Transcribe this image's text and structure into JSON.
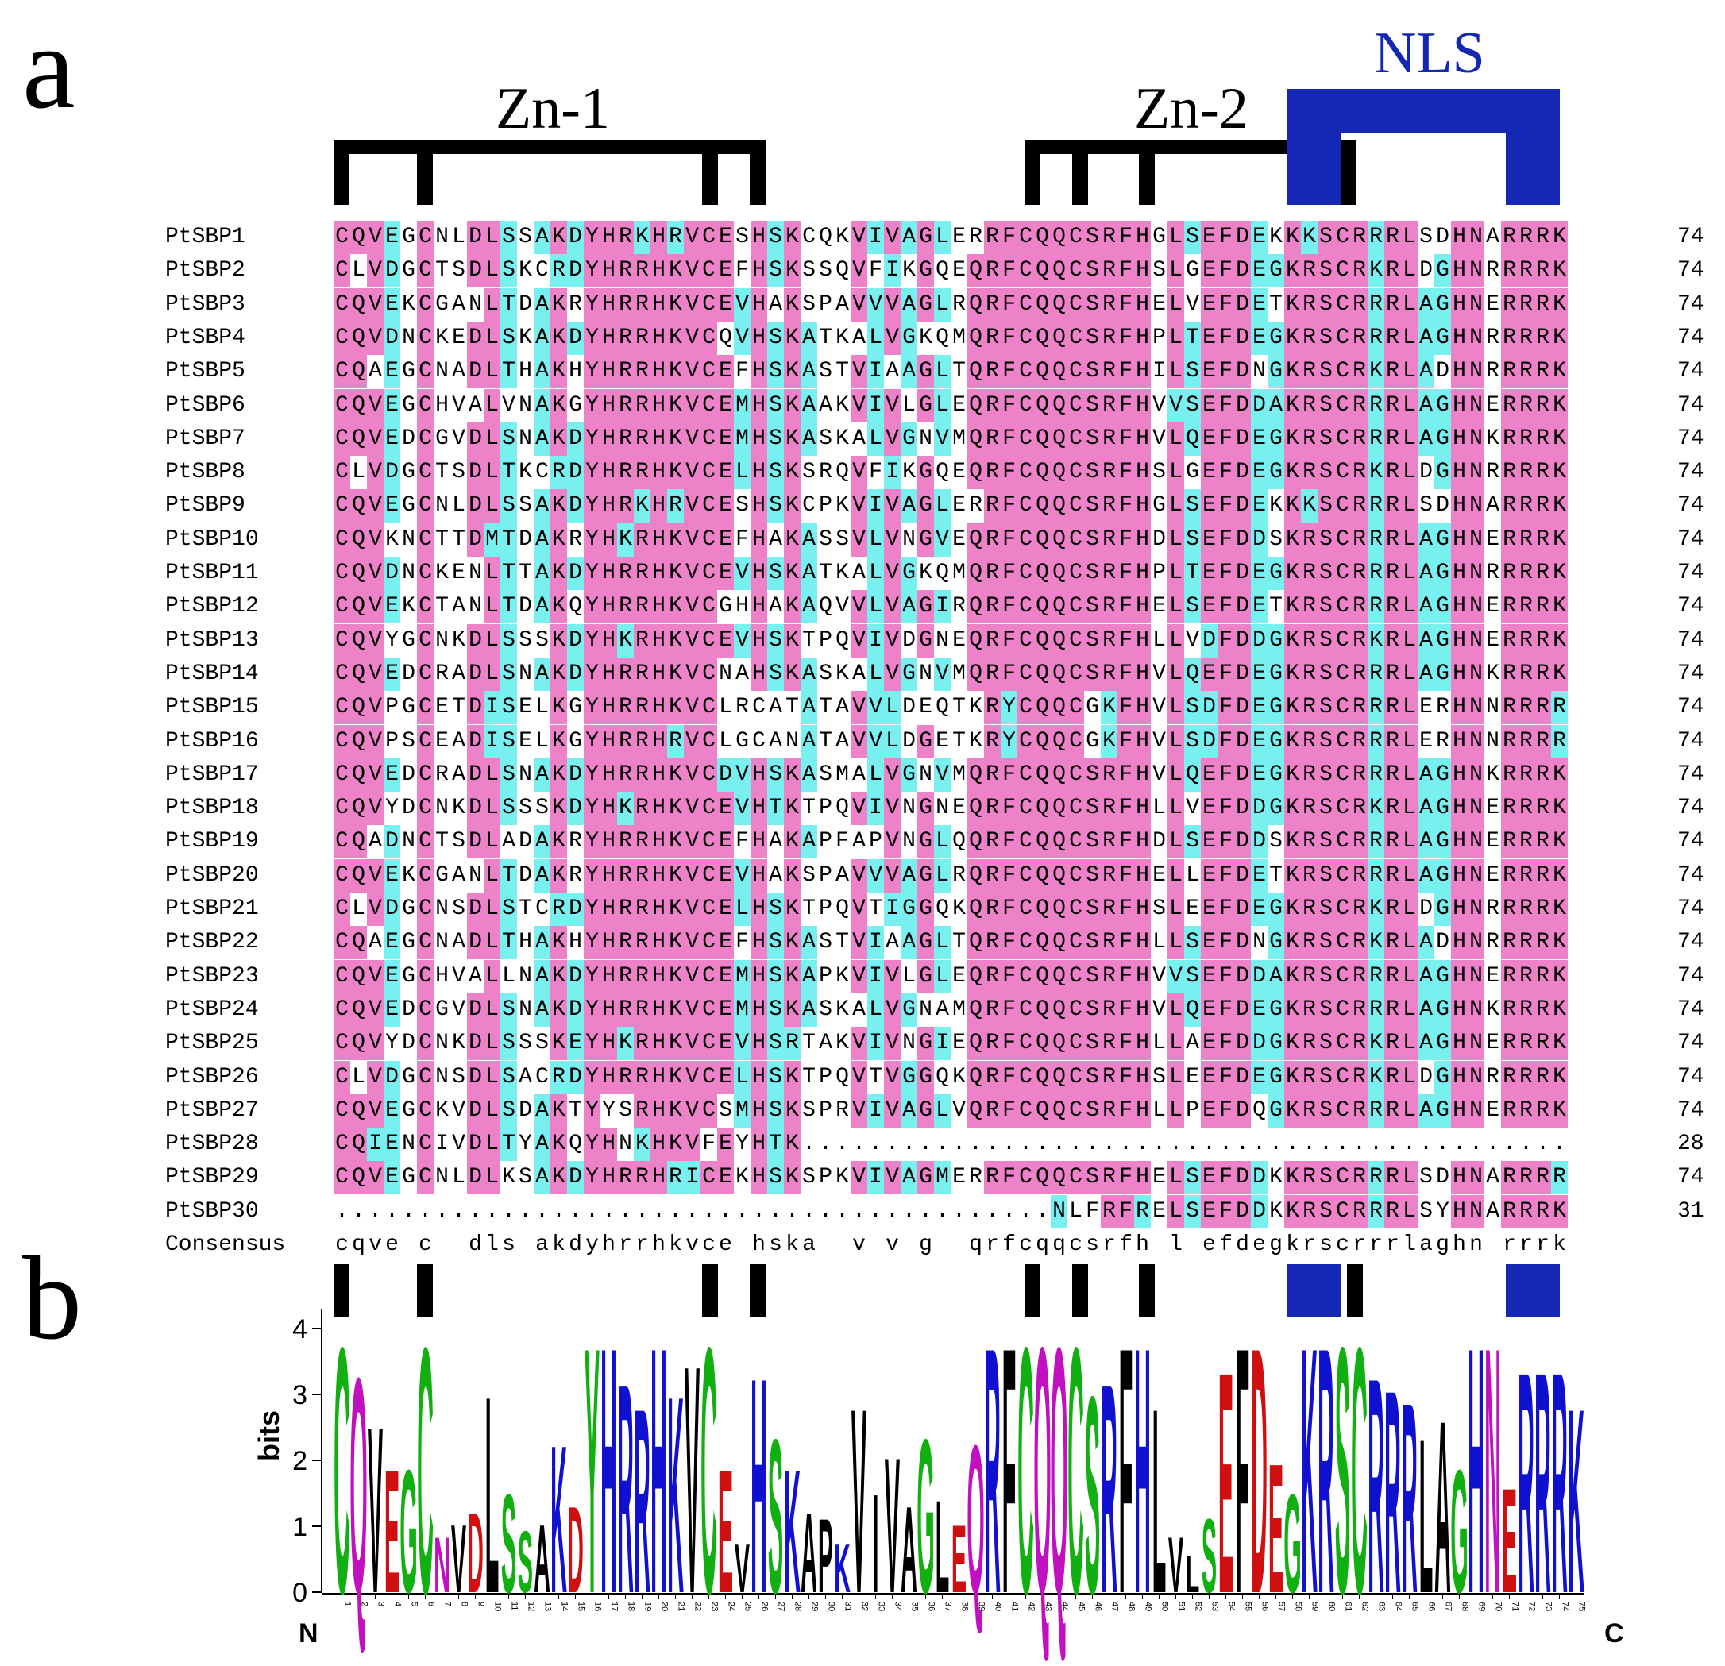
{
  "panel_labels": {
    "a": "a",
    "b": "b"
  },
  "domains": {
    "zn1": "Zn-1",
    "zn2": "Zn-2",
    "nls": "NLS"
  },
  "colors": {
    "identical": "#ee82c8",
    "similar": "#78f0f0",
    "nls": "#1428b4",
    "bracket": "#000000"
  },
  "alignment": {
    "rows": [
      {
        "name": "PtSBP1",
        "seq": "CQVEGCNLDLSSAKDYHRKHRVCESHSKCQKVIVAGLERRFCQQCSRFHGLSEFDEKKKSCRRRLSDHNARRRK",
        "end": "74"
      },
      {
        "name": "PtSBP2",
        "seq": "CLVDGCTSDLSKCRDYHRRHKVCEFHSKSSQVFIKGQEQRFCQQCSRFHSLGEFDEGKRSCRKRLDGHNRRRRK",
        "end": "74"
      },
      {
        "name": "PtSBP3",
        "seq": "CQVEKCGANLTDAKRYHRRHKVCEVHAKSPAVVVAGLRQRFCQQCSRFHELVEFDETKRSCRRRLAGHNERRRK",
        "end": "74"
      },
      {
        "name": "PtSBP4",
        "seq": "CQVDNCKEDLSKAKDYHRRHKVCQVHSKATKALVGKQMQRFCQQCSRFHPLTEFDEGKRSCRRRLAGHNRRRRK",
        "end": "74"
      },
      {
        "name": "PtSBP5",
        "seq": "CQAEGCNADLTHAKHYHRRHKVCEFHSKASTVIAAGLTQRFCQQCSRFHILSEFDNGKRSCRKRLADHNRRRRK",
        "end": "74"
      },
      {
        "name": "PtSBP6",
        "seq": "CQVEGCHVALVNAKGYHRRHKVCEMHSKAAKVIVLGLEQRFCQQCSRFHVVSEFDDAKRSCRRRLAGHNERRRK",
        "end": "74"
      },
      {
        "name": "PtSBP7",
        "seq": "CQVEDCGVDLSNAKDYHRRHKVCEMHSKASKALVGNVMQRFCQQCSRFHVLQEFDEGKRSCRRRLAGHNKRRRK",
        "end": "74"
      },
      {
        "name": "PtSBP8",
        "seq": "CLVDGCTSDLTKCRDYHRRHKVCELHSKSRQVFIKGQEQRFCQQCSRFHSLGEFDEGKRSCRKRLDGHNRRRRK",
        "end": "74"
      },
      {
        "name": "PtSBP9",
        "seq": "CQVEGCNLDLSSAKDYHRKHRVCESHSKCPKVIVAGLERRFCQQCSRFHGLSEFDEKKKSCRRRLSDHNARRRK",
        "end": "74"
      },
      {
        "name": "PtSBP10",
        "seq": "CQVKNCTTDMTDAKRYHKRHKVCEFHAKASSVLVNGVEQRFCQQCSRFHDLSEFDDSKRSCRRRLAGHNERRRK",
        "end": "74"
      },
      {
        "name": "PtSBP11",
        "seq": "CQVDNCKENLTTAKDYHRRHKVCEVHSKATKALVGKQMQRFCQQCSRFHPLTEFDEGKRSCRRRLAGHNRRRRK",
        "end": "74"
      },
      {
        "name": "PtSBP12",
        "seq": "CQVEKCTANLTDAKQYHRRHKVCGHHAKAQVVLVAGIRQRFCQQCSRFHELSEFDETKRSCRRRLAGHNERRRK",
        "end": "74"
      },
      {
        "name": "PtSBP13",
        "seq": "CQVYGCNKDLSSSKDYHKRHKVCEVHSKTPQVIVDGNEQRFCQQCSRFHLLVDFDDGKRSCRKRLAGHNERRRK",
        "end": "74"
      },
      {
        "name": "PtSBP14",
        "seq": "CQVEDCRADLSNAKDYHRRHKVCNAHSKASKALVGNVMQRFCQQCSRFHVLQEFDEGKRSCRRRLAGHNKRRRK",
        "end": "74"
      },
      {
        "name": "PtSBP15",
        "seq": "CQVPGCETDISELKGYHRRHKVCLRCATATAVVLDEQTKRYCQQCGKFHVLSDFDEGKRSCRRRLERHNNRRRR",
        "end": "74"
      },
      {
        "name": "PtSBP16",
        "seq": "CQVPSCEADISELKGYHRRHRVCLGCANATAVVLDGETKRYCQQCGKFHVLSDFDEGKRSCRRRLERHNNRRRR",
        "end": "74"
      },
      {
        "name": "PtSBP17",
        "seq": "CQVEDCRADLSNAKDYHRRHKVCDVHSKASMALVGNVMQRFCQQCSRFHVLQEFDEGKRSCRRRLAGHNKRRRK",
        "end": "74"
      },
      {
        "name": "PtSBP18",
        "seq": "CQVYDCNKDLSSSKDYHKRHKVCEVHTKTPQVIVNGNEQRFCQQCSRFHLLVEFDDGKRSCRKRLAGHNERRRK",
        "end": "74"
      },
      {
        "name": "PtSBP19",
        "seq": "CQADNCTSDLADAKRYHRRHKVCEFHAKAPFAPVNGLQQRFCQQCSRFHDLSEFDDSKRSCRRRLAGHNERRRK",
        "end": "74"
      },
      {
        "name": "PtSBP20",
        "seq": "CQVEKCGANLTDAKRYHRRHKVCEVHAKSPAVVVAGLRQRFCQQCSRFHELLEFDETKRSCRRRLAGHNERRRK",
        "end": "74"
      },
      {
        "name": "PtSBP21",
        "seq": "CLVDGCNSDLSTCRDYHRRHKVCELHSKTPQVTIGGQKQRFCQQCSRFHSLEEFDEGKRSCRKRLDGHNRRRRK",
        "end": "74"
      },
      {
        "name": "PtSBP22",
        "seq": "CQAEGCNADLTHAKHYHRRHKVCEFHSKASTVIAAGLTQRFCQQCSRFHLLSEFDNGKRSCRKRLADHNRRRRK",
        "end": "74"
      },
      {
        "name": "PtSBP23",
        "seq": "CQVEGCHVALLNAKDYHRRHKVCEMHSKAPKVIVLGLEQRFCQQCSRFHVVSEFDDAKRSCRRRLAGHNERRRK",
        "end": "74"
      },
      {
        "name": "PtSBP24",
        "seq": "CQVEDCGVDLSNAKDYHRRHKVCEMHSKASKALVGNAMQRFCQQCSRFHVLQEFDEGKRSCRRRLAGHNKRRRK",
        "end": "74"
      },
      {
        "name": "PtSBP25",
        "seq": "CQVYDCNKDLSSSKEYHKRHKVCEVHSRTAKVIVNGIEQRFCQQCSRFHLLAEFDDGKRSCRKRLAGHNERRRK",
        "end": "74"
      },
      {
        "name": "PtSBP26",
        "seq": "CLVDGCNSDLSACRDYHRRHKVCELHSKTPQVTVGGQKQRFCQQCSRFHSLEEFDEGKRSCRKRLDGHNRRRRK",
        "end": "74"
      },
      {
        "name": "PtSBP27",
        "seq": "CQVEGCKVDLSDAKTYYSRHKVCSMHSKSPRVIVAGLVQRFCQQCSRFHLLPEFDQGKRSCRRRLAGHNERRRK",
        "end": "74"
      },
      {
        "name": "PtSBP28",
        "seq": "CQIENCIVDLTYAKQYHNKHKVFEYHTK..............................................",
        "end": "28"
      },
      {
        "name": "PtSBP29",
        "seq": "CQVEGCNLDLKSAKDYHRRHRICEKHSKSPKVIVAGMERRFCQQCSRFHELSEFDDKKRSCRRRLSDHNARRRR",
        "end": "74"
      },
      {
        "name": "PtSBP30",
        "seq": "...........................................NLFRFRELSEFDDKKRSCRRRLSYHNARRRK",
        "end": "31"
      }
    ],
    "consensus": {
      "label": "Consensus",
      "seq": "cqve c  dls akdyhrrhkvce hska  v v g  qrfcqqcsrfh l efdegkrscrrrlaghn rrrk"
    }
  },
  "logo": {
    "y_axis_title": "bits",
    "y_ticks": [
      "0",
      "1",
      "2",
      "3",
      "4"
    ],
    "y_max": 4.3,
    "n_term": "N",
    "c_term": "C",
    "positions": [
      {
        "l": "C",
        "b": 4.0
      },
      {
        "l": "Q",
        "b": 3.5
      },
      {
        "l": "V",
        "b": 2.7
      },
      {
        "l": "E",
        "b": 2.0
      },
      {
        "l": "G",
        "b": 2.0
      },
      {
        "l": "C",
        "b": 4.0
      },
      {
        "l": "N",
        "b": 0.9
      },
      {
        "l": "V",
        "b": 1.1
      },
      {
        "l": "D",
        "b": 1.3
      },
      {
        "l": "L",
        "b": 3.2
      },
      {
        "l": "S",
        "b": 1.6
      },
      {
        "l": "S",
        "b": 1.0
      },
      {
        "l": "A",
        "b": 1.1
      },
      {
        "l": "K",
        "b": 2.4
      },
      {
        "l": "D",
        "b": 1.4
      },
      {
        "l": "Y",
        "b": 4.0
      },
      {
        "l": "H",
        "b": 4.0
      },
      {
        "l": "R",
        "b": 3.4
      },
      {
        "l": "R",
        "b": 3.0
      },
      {
        "l": "H",
        "b": 4.0
      },
      {
        "l": "K",
        "b": 3.2
      },
      {
        "l": "V",
        "b": 3.7
      },
      {
        "l": "C",
        "b": 4.0
      },
      {
        "l": "E",
        "b": 2.0
      },
      {
        "l": "V",
        "b": 0.8
      },
      {
        "l": "H",
        "b": 3.5
      },
      {
        "l": "S",
        "b": 2.5
      },
      {
        "l": "K",
        "b": 2.0
      },
      {
        "l": "A",
        "b": 1.3
      },
      {
        "l": "P",
        "b": 1.2
      },
      {
        "l": "K",
        "b": 0.8
      },
      {
        "l": "V",
        "b": 3.0
      },
      {
        "l": "I",
        "b": 1.6
      },
      {
        "l": "V",
        "b": 2.2
      },
      {
        "l": "A",
        "b": 1.4
      },
      {
        "l": "G",
        "b": 2.5
      },
      {
        "l": "L",
        "b": 1.5
      },
      {
        "l": "E",
        "b": 1.1
      },
      {
        "l": "Q",
        "b": 2.4
      },
      {
        "l": "R",
        "b": 4.0
      },
      {
        "l": "F",
        "b": 4.0
      },
      {
        "l": "C",
        "b": 4.0
      },
      {
        "l": "Q",
        "b": 4.0
      },
      {
        "l": "Q",
        "b": 4.0
      },
      {
        "l": "C",
        "b": 4.0
      },
      {
        "l": "S",
        "b": 3.2
      },
      {
        "l": "R",
        "b": 3.4
      },
      {
        "l": "F",
        "b": 4.0
      },
      {
        "l": "H",
        "b": 4.0
      },
      {
        "l": "L",
        "b": 3.0
      },
      {
        "l": "V",
        "b": 0.9
      },
      {
        "l": "L",
        "b": 0.6
      },
      {
        "l": "S",
        "b": 1.2
      },
      {
        "l": "E",
        "b": 3.6
      },
      {
        "l": "F",
        "b": 4.0
      },
      {
        "l": "D",
        "b": 4.0
      },
      {
        "l": "E",
        "b": 2.1
      },
      {
        "l": "G",
        "b": 1.6
      },
      {
        "l": "K",
        "b": 4.0
      },
      {
        "l": "R",
        "b": 4.0
      },
      {
        "l": "S",
        "b": 4.0
      },
      {
        "l": "C",
        "b": 4.0
      },
      {
        "l": "R",
        "b": 3.5
      },
      {
        "l": "R",
        "b": 3.3
      },
      {
        "l": "R",
        "b": 3.1
      },
      {
        "l": "L",
        "b": 2.5
      },
      {
        "l": "A",
        "b": 2.8
      },
      {
        "l": "G",
        "b": 2.0
      },
      {
        "l": "H",
        "b": 4.0
      },
      {
        "l": "N",
        "b": 4.0
      },
      {
        "l": "E",
        "b": 1.7
      },
      {
        "l": "R",
        "b": 3.6
      },
      {
        "l": "R",
        "b": 3.6
      },
      {
        "l": "R",
        "b": 3.6
      },
      {
        "l": "K",
        "b": 3.0
      }
    ],
    "x_ticks": [
      "1",
      "2",
      "3",
      "4",
      "5",
      "6",
      "7",
      "8",
      "9",
      "10",
      "11",
      "12",
      "13",
      "14",
      "15",
      "16",
      "17",
      "18",
      "19",
      "20",
      "21",
      "22",
      "23",
      "24",
      "25",
      "26",
      "27",
      "28",
      "29",
      "30",
      "31",
      "32",
      "33",
      "34",
      "35",
      "36",
      "37",
      "38",
      "39",
      "40",
      "41",
      "42",
      "43",
      "44",
      "45",
      "46",
      "47",
      "48",
      "49",
      "50",
      "51",
      "52",
      "53",
      "54",
      "55",
      "56",
      "57",
      "58",
      "59",
      "60",
      "61",
      "62",
      "63",
      "64",
      "65",
      "66",
      "67",
      "68",
      "69",
      "70",
      "71",
      "72",
      "73",
      "74",
      "75"
    ]
  }
}
